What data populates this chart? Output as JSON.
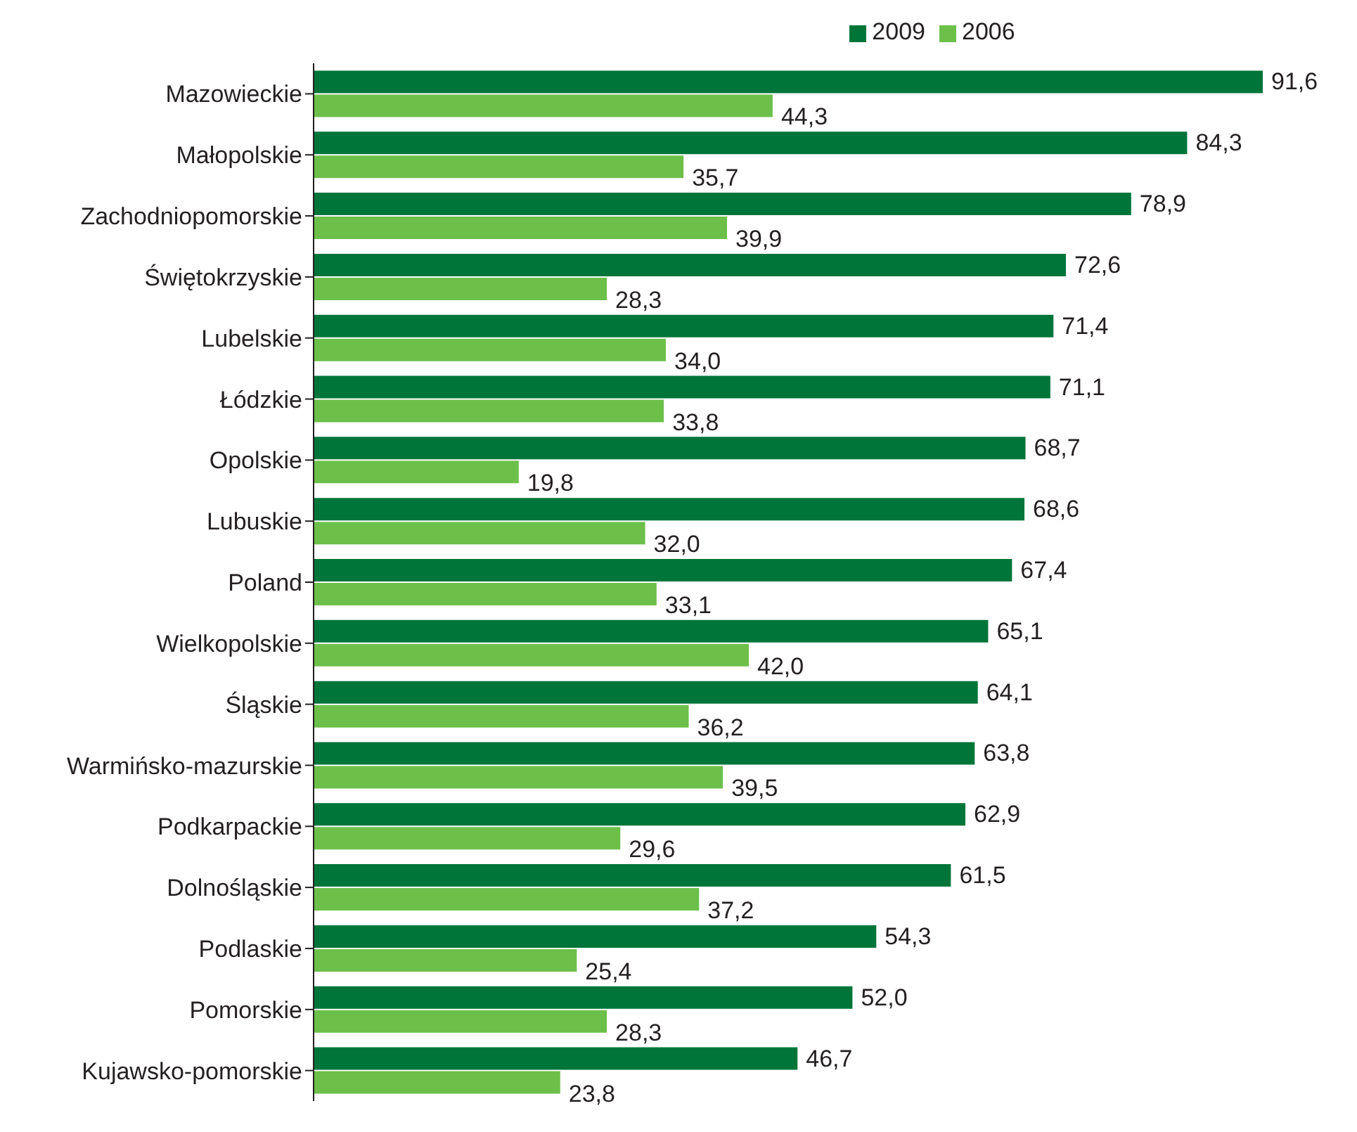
{
  "chart_data": {
    "type": "bar",
    "orientation": "horizontal",
    "legend": "top",
    "categories": [
      "Mazowieckie",
      "Małopolskie",
      "Zachodniopomorskie",
      "Świętokrzyskie",
      "Lubelskie",
      "Łódzkie",
      "Opolskie",
      "Lubuskie",
      "Poland",
      "Wielkopolskie",
      "Śląskie",
      "Warmińsko-mazurskie",
      "Podkarpackie",
      "Dolnośląskie",
      "Podlaskie",
      "Pomorskie",
      "Kujawsko-pomorskie"
    ],
    "series": [
      {
        "name": "2009",
        "color": "#00753a",
        "values": [
          91.6,
          84.3,
          78.9,
          72.6,
          71.4,
          71.1,
          68.7,
          68.6,
          67.4,
          65.1,
          64.1,
          63.8,
          62.9,
          61.5,
          54.3,
          52.0,
          46.7
        ],
        "value_labels": [
          "91,6",
          "84,3",
          "78,9",
          "72,6",
          "71,4",
          "71,1",
          "68,7",
          "68,6",
          "67,4",
          "65,1",
          "64,1",
          "63,8",
          "62,9",
          "61,5",
          "54,3",
          "52,0",
          "46,7"
        ]
      },
      {
        "name": "2006",
        "color": "#6cc04a",
        "values": [
          44.3,
          35.7,
          39.9,
          28.3,
          34.0,
          33.8,
          19.8,
          32.0,
          33.1,
          42.0,
          36.2,
          39.5,
          29.6,
          37.2,
          25.4,
          28.3,
          23.8
        ],
        "value_labels": [
          "44,3",
          "35,7",
          "39,9",
          "28,3",
          "34,0",
          "33,8",
          "19,8",
          "32,0",
          "33,1",
          "42,0",
          "36,2",
          "39,5",
          "29,6",
          "37,2",
          "25,4",
          "28,3",
          "23,8"
        ]
      }
    ]
  }
}
